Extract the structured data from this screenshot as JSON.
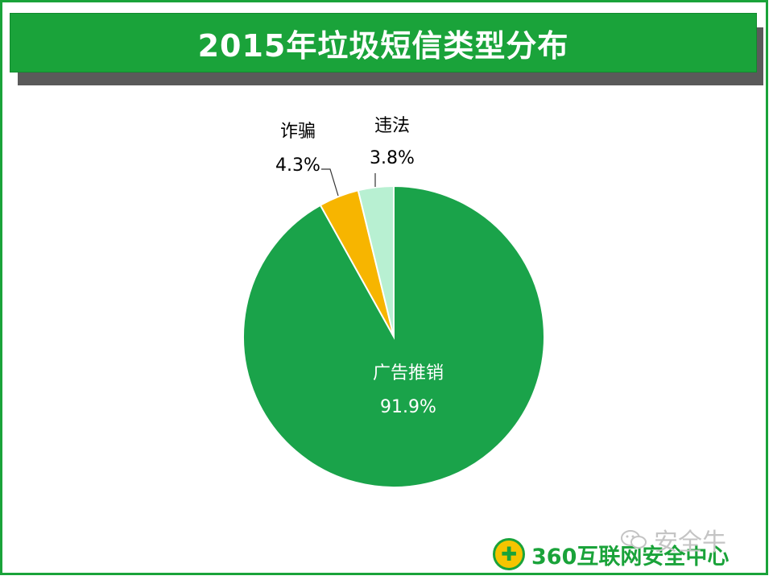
{
  "banner": {
    "title": "2015年垃圾短信类型分布"
  },
  "chart_data": {
    "type": "pie",
    "title": "2015年垃圾短信类型分布",
    "slices": [
      {
        "name": "广告推销",
        "value": 91.9,
        "label": "91.9%",
        "color": "#1aa34a",
        "label_color": "#ffffff"
      },
      {
        "name": "诈骗",
        "value": 4.3,
        "label": "4.3%",
        "color": "#f7b500",
        "label_color": "#000000"
      },
      {
        "name": "违法",
        "value": 3.8,
        "label": "3.8%",
        "color": "#b8f0d2",
        "label_color": "#000000"
      }
    ],
    "start_angle": "12 o'clock",
    "direction": "clockwise",
    "legend": "none"
  },
  "footer": {
    "logo_text": "360互联网安全中心",
    "logo_icon": "shield-cross-icon",
    "watermark_text": "安全牛",
    "watermark_icon": "wechat-icon"
  }
}
